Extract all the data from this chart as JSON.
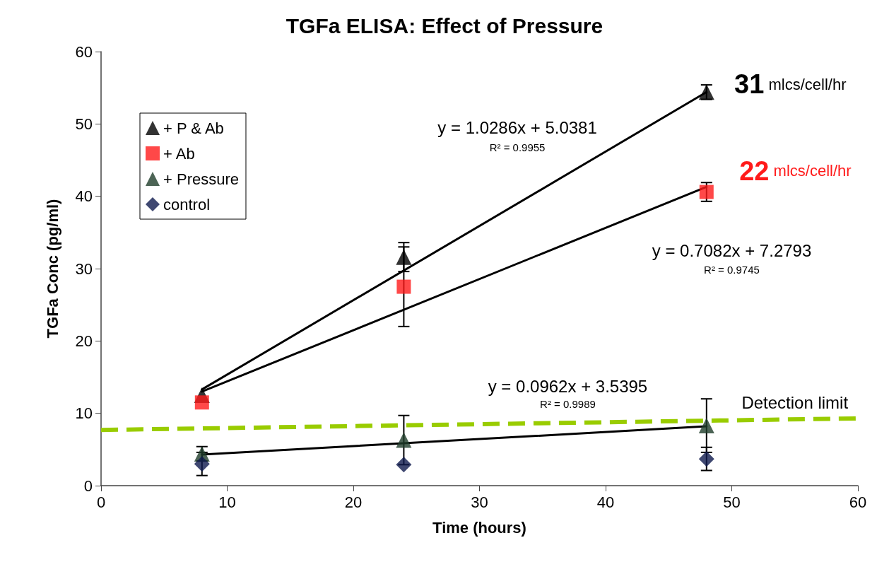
{
  "chart_data": {
    "type": "scatter",
    "title": "TGFa ELISA: Effect of Pressure",
    "xlabel": "Time (hours)",
    "ylabel": "TGFa Conc (pg/ml)",
    "x": [
      8,
      24,
      48
    ],
    "series": [
      {
        "name": "+ P & Ab",
        "color": "#000000",
        "marker": "triangle",
        "values": [
          12.5,
          31.6,
          54.4
        ],
        "errors": [
          null,
          2,
          1
        ]
      },
      {
        "name": "+ Ab",
        "color": "#ff1a1a",
        "marker": "square",
        "values": [
          11.5,
          27.5,
          40.6
        ],
        "errors": [
          null,
          5.5,
          1.3
        ]
      },
      {
        "name": "+ Pressure",
        "color": "#1f3d2a",
        "marker": "triangle",
        "values": [
          4.4,
          6.3,
          8.3
        ],
        "errors": [
          1,
          3.4,
          3.7
        ]
      },
      {
        "name": "control",
        "color": "#0f1a4d",
        "marker": "diamond",
        "values": [
          3.0,
          2.9,
          3.7
        ],
        "errors": [
          1.6,
          null,
          1.6
        ]
      },
      {
        "type": "line",
        "color": "#000000",
        "x": [
          8,
          48
        ],
        "values": [
          13.3,
          54.4
        ],
        "marker": "none",
        "line_style": "solid"
      },
      {
        "type": "line",
        "color": "#000000",
        "x": [
          8,
          48
        ],
        "values": [
          13.0,
          41.3
        ],
        "marker": "none",
        "line_style": "solid"
      },
      {
        "type": "line",
        "color": "#000000",
        "x": [
          8,
          48
        ],
        "values": [
          4.3,
          8.2
        ],
        "marker": "none",
        "line_style": "solid"
      },
      {
        "type": "line",
        "color": "#99cc00",
        "x": [
          0,
          60
        ],
        "values": [
          7.7,
          9.3
        ],
        "marker": "none",
        "line_style": "dashed"
      }
    ],
    "annotations": [
      "y = 1.0286x + 5.0381",
      "R² = 0.9955",
      "y = 0.7082x + 7.2793",
      "R² = 0.9745",
      "y = 0.0962x + 3.5395",
      "R² = 0.9989",
      "Detection limit",
      "31 mlcs/cell/hr",
      "22 mlcs/cell/hr"
    ],
    "xlim": [
      0,
      60
    ],
    "xticks": [
      0,
      10,
      20,
      30,
      40,
      50,
      60
    ],
    "ylim": [
      0,
      60
    ],
    "yticks": [
      0,
      10,
      20,
      30,
      40,
      50,
      60
    ],
    "grid": false,
    "legend": "top left"
  }
}
